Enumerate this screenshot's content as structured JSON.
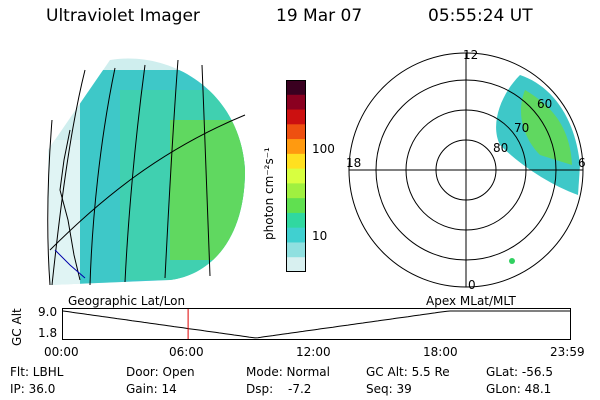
{
  "header": {
    "instrument": "Ultraviolet Imager",
    "date": "19 Mar 07",
    "time": "05:55:24 UT"
  },
  "colorbar": {
    "unit_label": "photon cm⁻²s⁻¹",
    "ticks": [
      "100",
      "10"
    ],
    "colors": [
      "#3a0020",
      "#8a0020",
      "#cc1010",
      "#ee5010",
      "#ff9a10",
      "#ffe020",
      "#d8ff40",
      "#a0f040",
      "#60e050",
      "#30d8a0",
      "#40d0d0",
      "#90e0e0",
      "#d8f0f0"
    ]
  },
  "left_panel": {
    "caption": "Geographic Lat/Lon"
  },
  "polar_panel": {
    "caption": "Apex MLat/MLT",
    "mlt_labels": {
      "top": "12",
      "left": "18",
      "right": "6",
      "bottom": "0"
    },
    "lat_labels": [
      "60",
      "70",
      "80"
    ]
  },
  "altitude_plot": {
    "ylabel": "GC Alt",
    "y_ticks": [
      "9.0",
      "1.8"
    ],
    "x_ticks": [
      "00:00",
      "06:00",
      "12:00",
      "18:00",
      "23:59"
    ],
    "marker_color": "#e00000",
    "curve_color": "#000000"
  },
  "info": {
    "filter": "Flt: LBHL",
    "ip": "IP: 36.0",
    "door": "Door: Open",
    "gain": "Gain: 14",
    "mode": "Mode: Normal",
    "dsp_label": "Dsp:",
    "dsp_value": "-7.2",
    "gc_alt": "GC Alt: 5.5 Re",
    "seq": "Seq: 39",
    "glat": "GLat: -56.5",
    "glon": "GLon: 48.1"
  }
}
